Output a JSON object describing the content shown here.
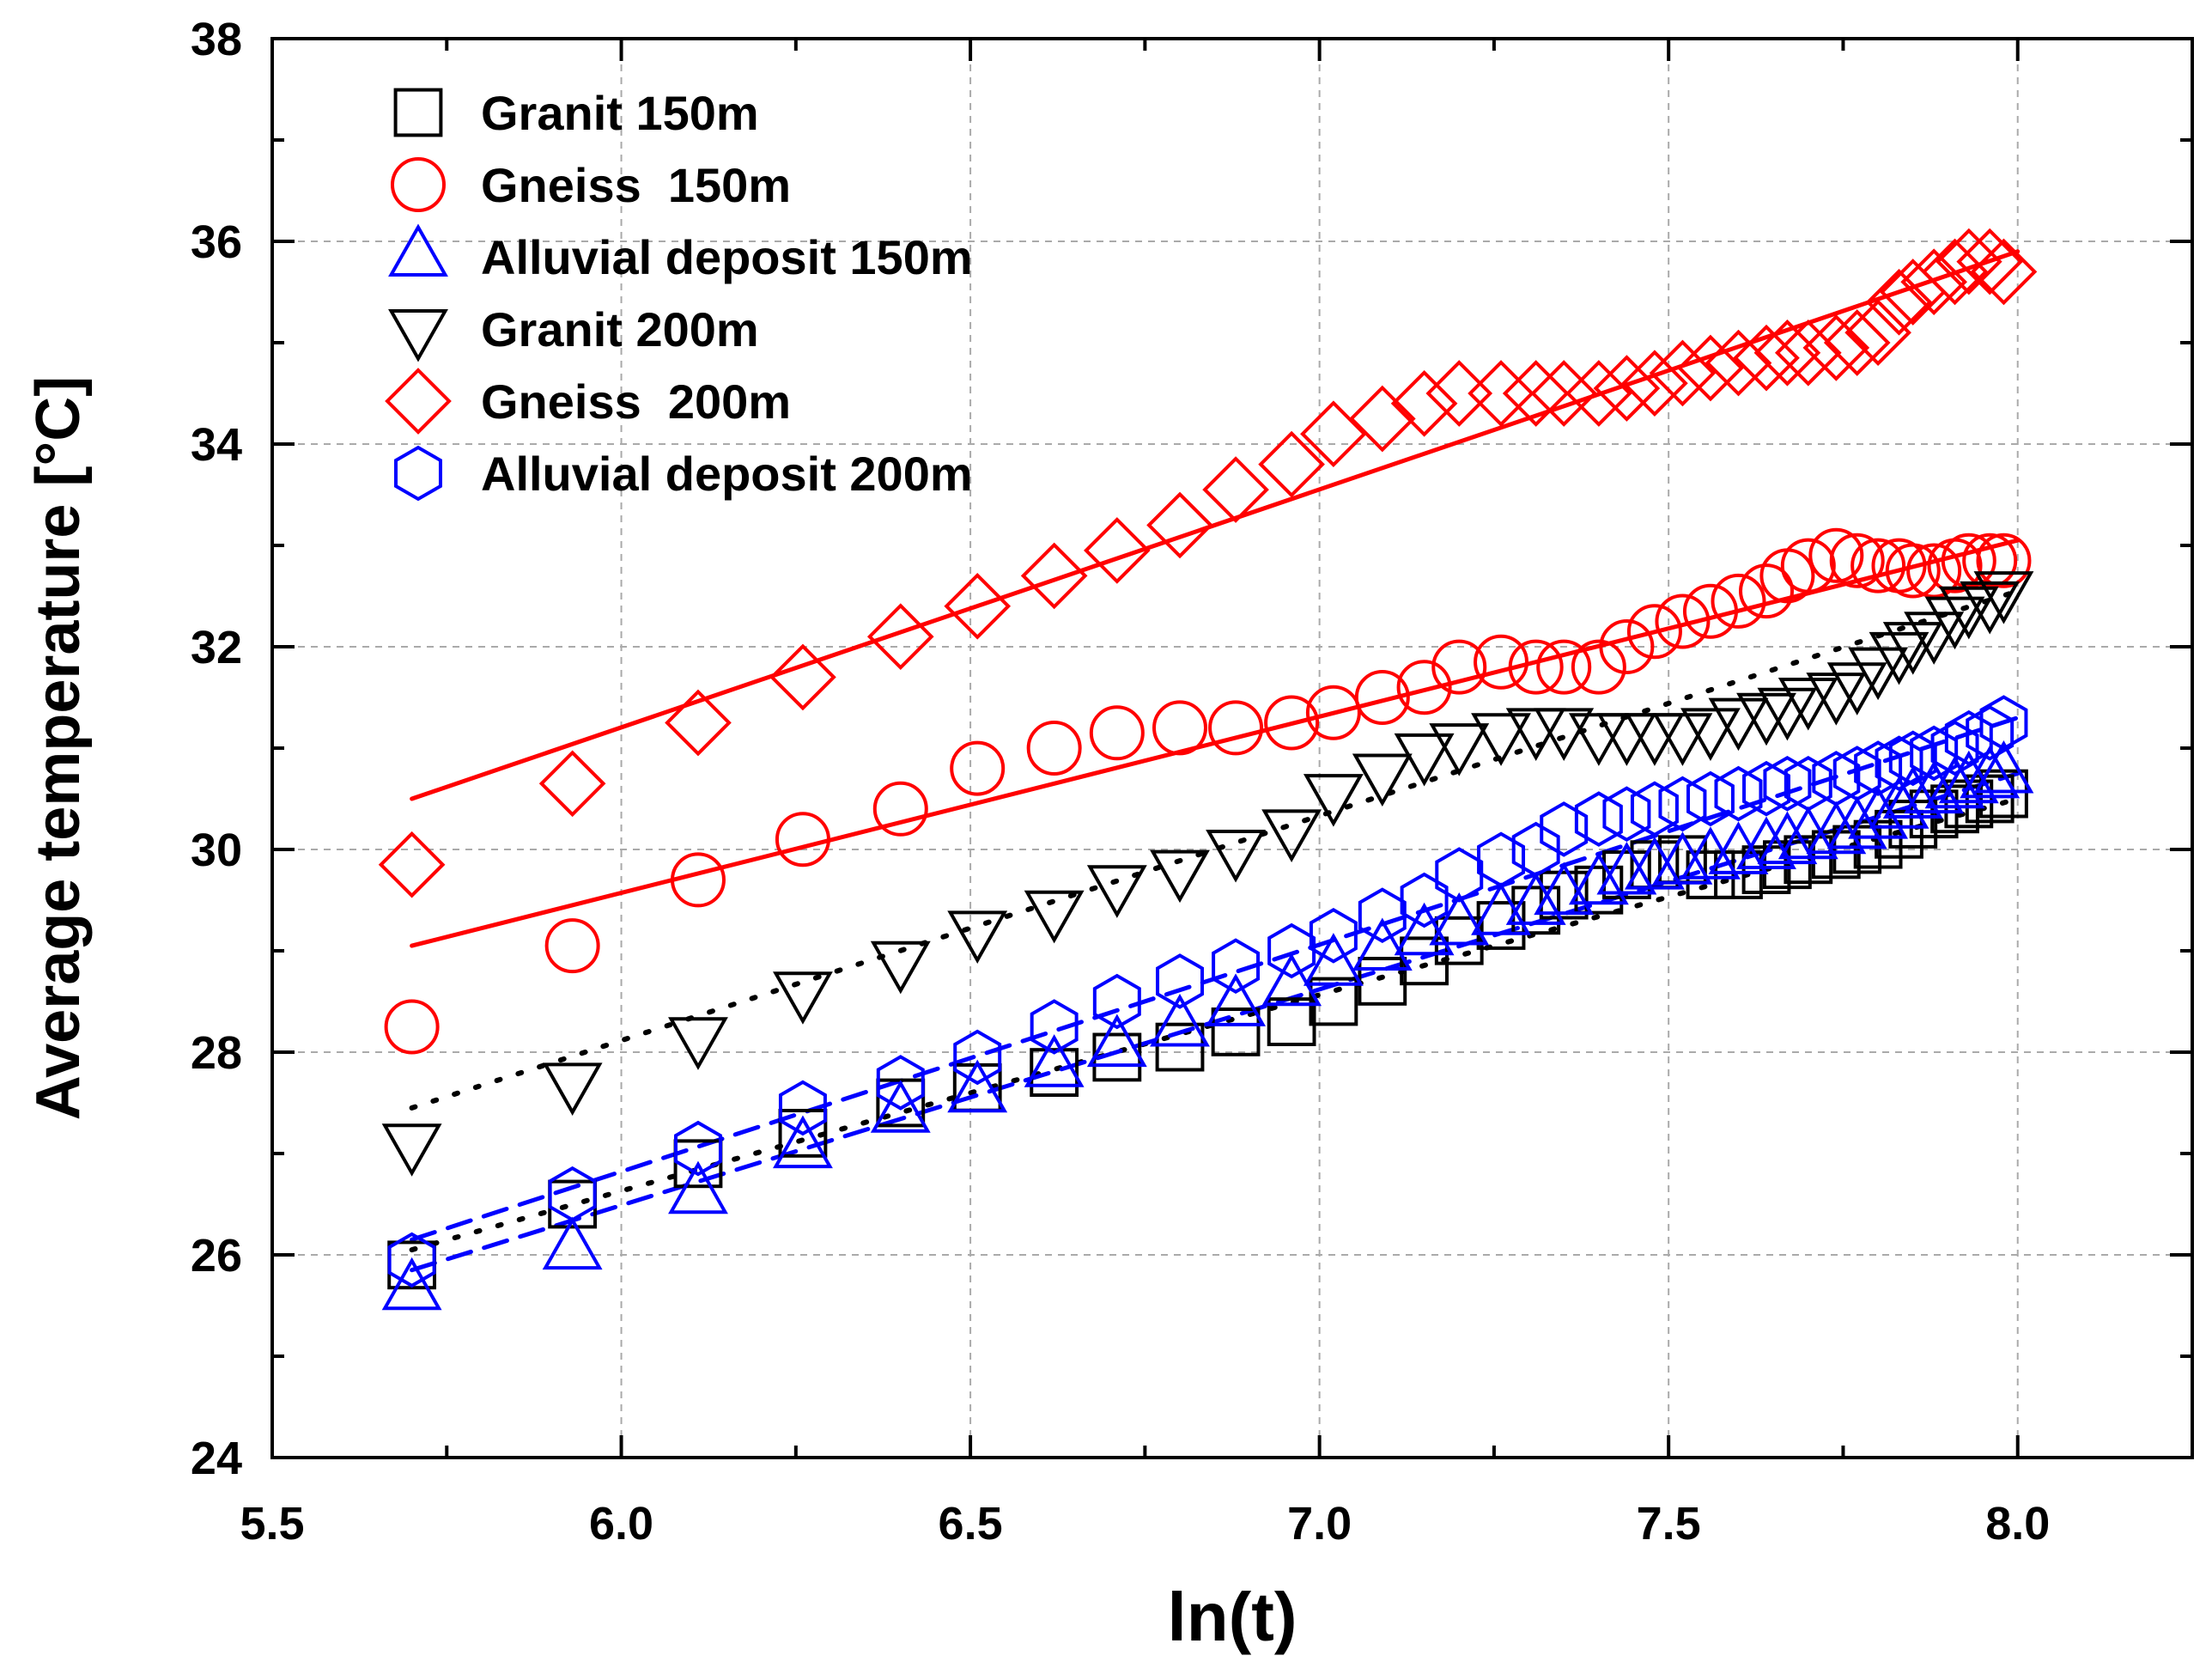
{
  "chart_data": {
    "type": "scatter",
    "title": "",
    "xlabel": "ln(t)",
    "ylabel": "Average temperature [",
    "ylabel_unit": "°C",
    "ylabel_close": "]",
    "xlim": [
      5.5,
      8.25
    ],
    "ylim": [
      24,
      38
    ],
    "xticks": [
      5.5,
      6.0,
      6.5,
      7.0,
      7.5,
      8.0
    ],
    "xtick_labels": [
      "5.5",
      "6.0",
      "6.5",
      "7.0",
      "7.5",
      "8.0"
    ],
    "yticks": [
      24,
      26,
      28,
      30,
      32,
      34,
      36,
      38
    ],
    "ytick_labels": [
      "24",
      "26",
      "28",
      "30",
      "32",
      "34",
      "36",
      "38"
    ],
    "grid": true,
    "legend_position": "top-left",
    "x": [
      5.7,
      5.93,
      6.11,
      6.26,
      6.4,
      6.51,
      6.62,
      6.71,
      6.8,
      6.88,
      6.96,
      7.02,
      7.09,
      7.15,
      7.2,
      7.26,
      7.31,
      7.35,
      7.4,
      7.44,
      7.48,
      7.52,
      7.56,
      7.6,
      7.64,
      7.67,
      7.7,
      7.74,
      7.77,
      7.8,
      7.83,
      7.85,
      7.88,
      7.91,
      7.93,
      7.96,
      7.98
    ],
    "series": [
      {
        "name": "Granit 150m",
        "marker": "square",
        "color": "#000000",
        "values": [
          25.9,
          26.5,
          26.9,
          27.2,
          27.5,
          27.65,
          27.8,
          27.95,
          28.05,
          28.2,
          28.3,
          28.5,
          28.7,
          28.9,
          29.1,
          29.25,
          29.4,
          29.55,
          29.6,
          29.75,
          29.85,
          29.9,
          29.75,
          29.75,
          29.8,
          29.85,
          29.9,
          29.95,
          30.0,
          30.05,
          30.15,
          30.25,
          30.35,
          30.4,
          30.45,
          30.5,
          30.55
        ],
        "fit": {
          "style": "dotted",
          "x": [
            5.7,
            8.0
          ],
          "y": [
            26.05,
            30.5
          ]
        }
      },
      {
        "name": "Gneiss  150m",
        "marker": "circle",
        "color": "#ff0000",
        "values": [
          28.25,
          29.05,
          29.7,
          30.1,
          30.4,
          30.8,
          31.0,
          31.15,
          31.2,
          31.2,
          31.25,
          31.35,
          31.5,
          31.6,
          31.8,
          31.85,
          31.8,
          31.8,
          31.8,
          32.0,
          32.15,
          32.25,
          32.35,
          32.45,
          32.55,
          32.7,
          32.8,
          32.9,
          32.85,
          32.8,
          32.8,
          32.75,
          32.75,
          32.8,
          32.85,
          32.85,
          32.85
        ],
        "fit": {
          "style": "solid",
          "x": [
            5.7,
            8.0
          ],
          "y": [
            29.05,
            33.05
          ]
        }
      },
      {
        "name": "Alluvial deposit 150m",
        "marker": "triangle-up",
        "color": "#0000ff",
        "values": [
          25.65,
          26.05,
          26.6,
          27.05,
          27.4,
          27.6,
          27.85,
          28.05,
          28.25,
          28.45,
          28.65,
          28.85,
          29.0,
          29.15,
          29.25,
          29.35,
          29.45,
          29.55,
          29.65,
          29.75,
          29.8,
          29.85,
          29.9,
          29.95,
          30.0,
          30.05,
          30.1,
          30.15,
          30.2,
          30.3,
          30.4,
          30.5,
          30.55,
          30.6,
          30.65,
          30.7,
          30.75
        ],
        "fit": {
          "style": "dashed",
          "x": [
            5.7,
            8.0
          ],
          "y": [
            25.85,
            30.75
          ]
        }
      },
      {
        "name": "Granit 200m",
        "marker": "triangle-down",
        "color": "#000000",
        "values": [
          27.1,
          27.7,
          28.15,
          28.6,
          28.9,
          29.2,
          29.4,
          29.65,
          29.8,
          30.0,
          30.2,
          30.55,
          30.75,
          30.95,
          31.05,
          31.15,
          31.2,
          31.2,
          31.15,
          31.15,
          31.15,
          31.15,
          31.2,
          31.3,
          31.35,
          31.4,
          31.5,
          31.55,
          31.65,
          31.8,
          31.95,
          32.05,
          32.15,
          32.3,
          32.4,
          32.45,
          32.55
        ],
        "fit": {
          "style": "dotted",
          "x": [
            5.7,
            8.0
          ],
          "y": [
            27.45,
            32.55
          ]
        }
      },
      {
        "name": "Gneiss  200m",
        "marker": "diamond",
        "color": "#ff0000",
        "values": [
          29.85,
          30.65,
          31.25,
          31.7,
          32.1,
          32.4,
          32.7,
          32.95,
          33.2,
          33.55,
          33.8,
          34.1,
          34.25,
          34.4,
          34.5,
          34.5,
          34.5,
          34.5,
          34.5,
          34.55,
          34.6,
          34.7,
          34.75,
          34.8,
          34.85,
          34.9,
          34.9,
          34.95,
          35.0,
          35.1,
          35.4,
          35.5,
          35.6,
          35.7,
          35.8,
          35.8,
          35.7
        ],
        "fit": {
          "style": "solid",
          "x": [
            5.7,
            8.0
          ],
          "y": [
            30.5,
            35.9
          ]
        }
      },
      {
        "name": "Alluvial deposit 200m",
        "marker": "hexagon",
        "color": "#0000ff",
        "values": [
          25.95,
          26.6,
          27.05,
          27.45,
          27.7,
          27.95,
          28.25,
          28.5,
          28.7,
          28.85,
          29.0,
          29.15,
          29.35,
          29.5,
          29.75,
          29.9,
          30.0,
          30.2,
          30.3,
          30.35,
          30.4,
          30.45,
          30.5,
          30.55,
          30.6,
          30.65,
          30.65,
          30.7,
          30.75,
          30.8,
          30.85,
          30.9,
          30.95,
          31.0,
          31.1,
          31.15,
          31.25
        ],
        "fit": {
          "style": "dashed",
          "x": [
            5.7,
            8.0
          ],
          "y": [
            26.15,
            31.3
          ]
        }
      }
    ]
  }
}
